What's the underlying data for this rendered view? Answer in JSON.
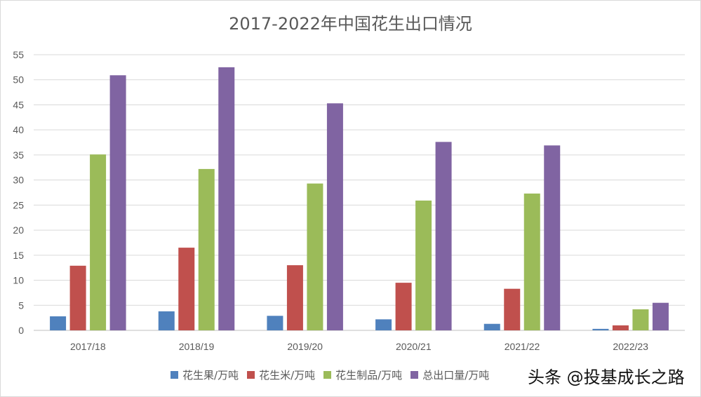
{
  "chart_data": {
    "type": "bar",
    "title": "2017-2022年中国花生出口情况",
    "categories": [
      "2017/18",
      "2018/19",
      "2019/20",
      "2020/21",
      "2021/22",
      "2022/23"
    ],
    "series": [
      {
        "name": "花生果/万吨",
        "color": "#4f81bd",
        "values": [
          2.8,
          3.8,
          2.9,
          2.2,
          1.3,
          0.3
        ]
      },
      {
        "name": "花生米/万吨",
        "color": "#c0504d",
        "values": [
          12.9,
          16.5,
          13.0,
          9.5,
          8.3,
          1.0
        ]
      },
      {
        "name": "花生制品/万吨",
        "color": "#9bbb59",
        "values": [
          35.1,
          32.2,
          29.3,
          25.9,
          27.3,
          4.2
        ]
      },
      {
        "name": "总出口量/万吨",
        "color": "#8064a2",
        "values": [
          50.9,
          52.5,
          45.3,
          37.6,
          36.9,
          5.5
        ]
      }
    ],
    "ylim": [
      0,
      55
    ],
    "yticks": [
      0,
      5,
      10,
      15,
      20,
      25,
      30,
      35,
      40,
      45,
      50,
      55
    ],
    "grid": true,
    "legend_position": "bottom"
  },
  "watermark": "头条 @投基成长之路"
}
